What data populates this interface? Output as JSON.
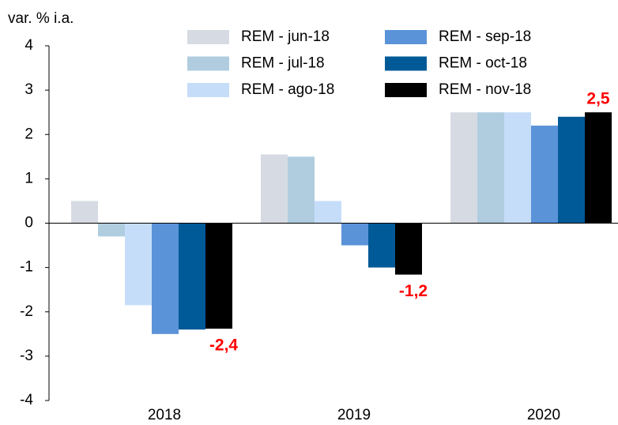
{
  "chart_data": {
    "type": "bar",
    "y_label": "var. % i.a.",
    "categories": [
      "2018",
      "2019",
      "2020"
    ],
    "series": [
      {
        "name": "REM - jun-18",
        "color": "#d6dbe3",
        "values": [
          0.5,
          1.55,
          2.5
        ]
      },
      {
        "name": "REM - jul-18",
        "color": "#b0cde0",
        "values": [
          -0.3,
          1.5,
          2.5
        ]
      },
      {
        "name": "REM - ago-18",
        "color": "#c6ddfa",
        "values": [
          -1.85,
          0.5,
          2.5
        ]
      },
      {
        "name": "REM - sep-18",
        "color": "#5b93d9",
        "values": [
          -2.5,
          -0.5,
          2.2
        ]
      },
      {
        "name": "REM - oct-18",
        "color": "#005a98",
        "values": [
          -2.4,
          -1.0,
          2.4
        ]
      },
      {
        "name": "REM - nov-18",
        "color": "#000000",
        "values": [
          -2.38,
          -1.16,
          2.5
        ],
        "value_labels": [
          "-2,4",
          "-1,2",
          "2,5"
        ],
        "label_color": "#ff0000"
      }
    ],
    "ylim": [
      -4,
      4
    ],
    "yticks": [
      -4,
      -3,
      -2,
      -1,
      0,
      1,
      2,
      3,
      4
    ],
    "grid": false
  }
}
